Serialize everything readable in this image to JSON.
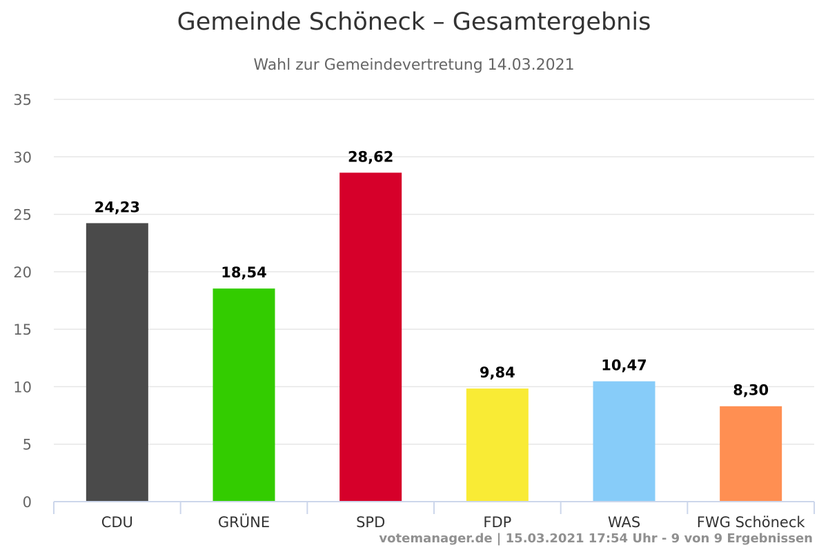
{
  "chart_data": {
    "type": "bar",
    "title": "Gemeinde Schöneck – Gesamtergebnis",
    "subtitle": "Wahl zur Gemeindevertretung 14.03.2021",
    "categories": [
      "CDU",
      "GRÜNE",
      "SPD",
      "FDP",
      "WAS",
      "FWG Schöneck"
    ],
    "values": [
      24.23,
      18.54,
      28.62,
      9.84,
      10.47,
      8.3
    ],
    "value_labels": [
      "24,23",
      "18,54",
      "28,62",
      "9,84",
      "10,47",
      "8,30"
    ],
    "colors": [
      "#4a4a4a",
      "#33cc00",
      "#d6002a",
      "#f9eb35",
      "#87ccf9",
      "#ff8f52"
    ],
    "yticks": [
      0,
      5,
      10,
      15,
      20,
      25,
      30,
      35
    ],
    "ylim": [
      0,
      35
    ],
    "grid": true,
    "legend": "none",
    "credits": "votemanager.de | 15.03.2021 17:54 Uhr - 9 von 9 Ergebnissen"
  }
}
